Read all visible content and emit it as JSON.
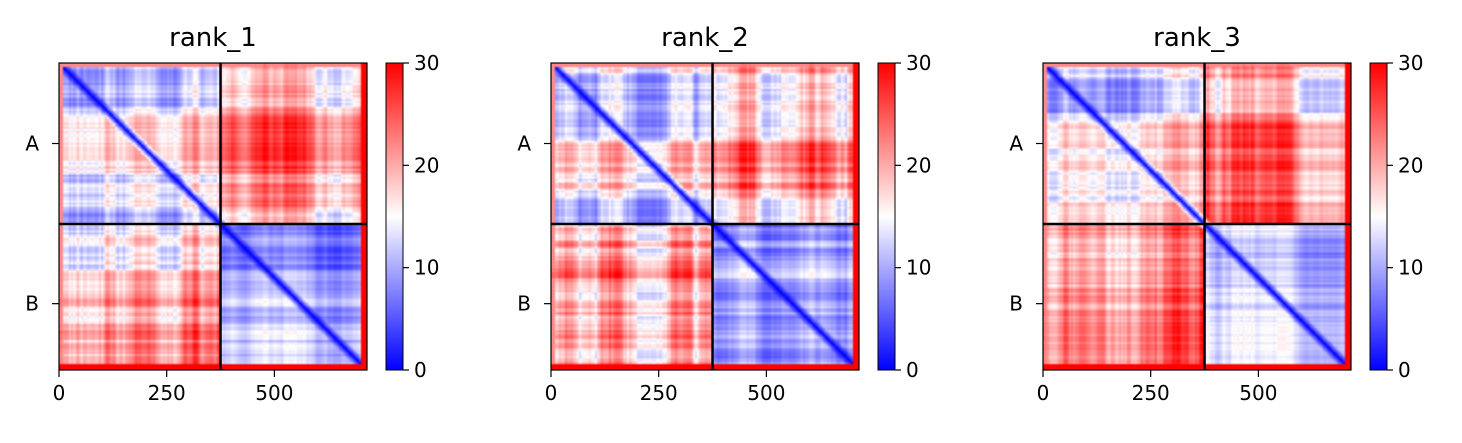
{
  "chart_data": [
    {
      "type": "heatmap",
      "title": "rank_1",
      "x_ticks": [
        0,
        250,
        500
      ],
      "y_labels": [
        "A",
        "B"
      ],
      "y_label_centers": [
        187.5,
        560.5
      ],
      "chain_boundary": 375,
      "extent": [
        0,
        715
      ],
      "colorbar": {
        "min": 0,
        "max": 30,
        "ticks": [
          0,
          10,
          20,
          30
        ],
        "colors": [
          "#0000ff",
          "#ffffff",
          "#ff0000"
        ]
      },
      "grid": false
    },
    {
      "type": "heatmap",
      "title": "rank_2",
      "x_ticks": [
        0,
        250,
        500
      ],
      "y_labels": [
        "A",
        "B"
      ],
      "y_label_centers": [
        187.5,
        560.5
      ],
      "chain_boundary": 375,
      "extent": [
        0,
        715
      ],
      "colorbar": {
        "min": 0,
        "max": 30,
        "ticks": [
          0,
          10,
          20,
          30
        ],
        "colors": [
          "#0000ff",
          "#ffffff",
          "#ff0000"
        ]
      },
      "grid": false
    },
    {
      "type": "heatmap",
      "title": "rank_3",
      "x_ticks": [
        0,
        250,
        500
      ],
      "y_labels": [
        "A",
        "B"
      ],
      "y_label_centers": [
        187.5,
        560.5
      ],
      "chain_boundary": 375,
      "extent": [
        0,
        715
      ],
      "colorbar": {
        "min": 0,
        "max": 30,
        "ticks": [
          0,
          10,
          20,
          30
        ],
        "colors": [
          "#0000ff",
          "#ffffff",
          "#ff0000"
        ]
      },
      "grid": false
    }
  ]
}
